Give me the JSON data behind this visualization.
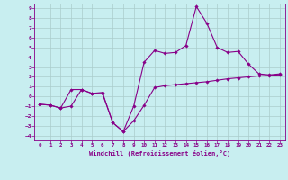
{
  "xlabel": "Windchill (Refroidissement éolien,°C)",
  "bg_color": "#c8eef0",
  "grid_color": "#aacccc",
  "line_color": "#880088",
  "xlim": [
    -0.5,
    23.5
  ],
  "ylim": [
    -4.5,
    9.5
  ],
  "xticks": [
    0,
    1,
    2,
    3,
    4,
    5,
    6,
    7,
    8,
    9,
    10,
    11,
    12,
    13,
    14,
    15,
    16,
    17,
    18,
    19,
    20,
    21,
    22,
    23
  ],
  "yticks": [
    -4,
    -3,
    -2,
    -1,
    0,
    1,
    2,
    3,
    4,
    5,
    6,
    7,
    8,
    9
  ],
  "curve1_x": [
    0,
    1,
    2,
    3,
    4,
    5,
    6,
    7,
    8,
    9,
    10,
    11,
    12,
    13,
    14,
    15,
    16,
    17,
    18,
    19,
    20,
    21,
    22,
    23
  ],
  "curve1_y": [
    -0.8,
    -0.9,
    -1.2,
    -1.0,
    0.7,
    0.3,
    0.4,
    -2.7,
    -3.6,
    -2.5,
    -0.9,
    0.9,
    1.1,
    1.2,
    1.3,
    1.4,
    1.5,
    1.65,
    1.8,
    1.9,
    2.0,
    2.1,
    2.15,
    2.2
  ],
  "curve2_x": [
    0,
    1,
    2,
    3,
    4,
    5,
    6,
    7,
    8,
    9,
    10,
    11,
    12,
    13,
    14,
    15,
    16,
    17,
    18,
    19,
    20,
    21,
    22,
    23
  ],
  "curve2_y": [
    -0.8,
    -0.9,
    -1.2,
    0.7,
    0.7,
    0.3,
    0.3,
    -2.7,
    -3.6,
    -1.0,
    3.5,
    4.7,
    4.4,
    4.5,
    5.2,
    9.2,
    7.5,
    5.0,
    4.5,
    4.6,
    3.3,
    2.3,
    2.2,
    2.3
  ]
}
